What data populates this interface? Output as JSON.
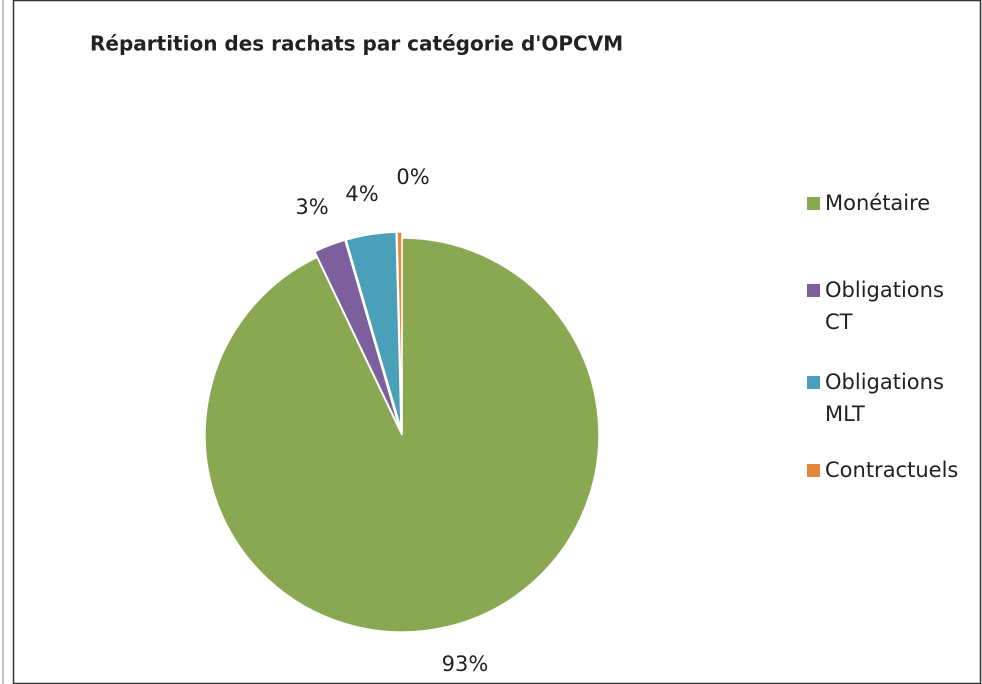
{
  "chart_data": {
    "type": "pie",
    "title": "Répartition des rachats par catégorie d'OPCVM",
    "categories": [
      "Monétaire",
      "Obligations CT",
      "Obligations MLT",
      "Contractuels"
    ],
    "values": [
      92.9,
      2.6,
      4.1,
      0.4
    ],
    "value_labels": [
      "93%",
      "3%",
      "4%",
      "0%"
    ],
    "colors": [
      "#8aa851",
      "#7d5f9d",
      "#4aa0b9",
      "#e5873b"
    ]
  }
}
